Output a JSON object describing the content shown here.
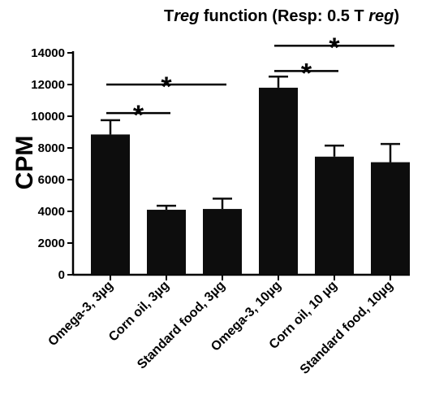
{
  "chart_data": {
    "type": "bar",
    "title_parts": [
      {
        "text": "T",
        "italic": false
      },
      {
        "text": "reg",
        "italic": true
      },
      {
        "text": " function (Resp: 0.5 T ",
        "italic": false
      },
      {
        "text": "reg",
        "italic": true
      },
      {
        "text": ")",
        "italic": false
      }
    ],
    "ylabel": "CPM",
    "xlabel": "",
    "ylim": [
      0,
      14000
    ],
    "yticks": [
      0,
      2000,
      4000,
      6000,
      8000,
      10000,
      12000,
      14000
    ],
    "categories": [
      "Omega-3,  3µg",
      "Corn oil, 3µg",
      "Standard food, 3µg",
      "Omega-3, 10µg",
      "Corn oil, 10 µg",
      "Standard food, 10µg"
    ],
    "values": [
      8850,
      4100,
      4150,
      11800,
      7450,
      7100
    ],
    "errors": [
      900,
      250,
      650,
      700,
      700,
      1150
    ],
    "bar_color": "#0d0d0d",
    "grid": false,
    "significance": [
      {
        "from": 0,
        "to": 2,
        "y": 12000,
        "label": "*"
      },
      {
        "from": 0,
        "to": 1,
        "y": 10200,
        "label": "*"
      },
      {
        "from": 3,
        "to": 5,
        "y": 14450,
        "label": "*"
      },
      {
        "from": 3,
        "to": 4,
        "y": 12850,
        "label": "*"
      }
    ]
  }
}
